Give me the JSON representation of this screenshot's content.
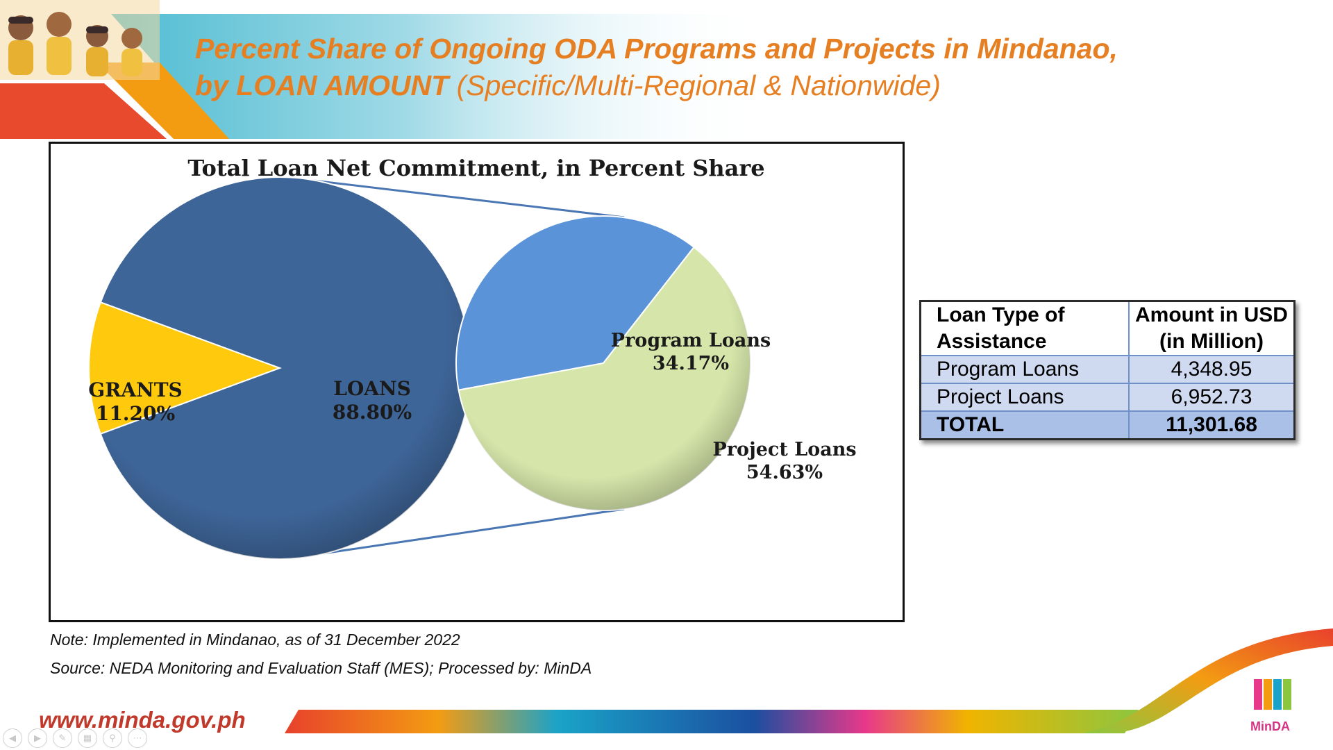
{
  "title": {
    "line1": "Percent Share of Ongoing ODA Programs and Projects in Mindanao,",
    "line2_bold": "by LOAN AMOUNT",
    "line2_rest": " (Specific/Multi-Regional & Nationwide)"
  },
  "chart_data": {
    "type": "pie",
    "variant": "pie-of-pie",
    "title": "Total Loan Net Commitment, in Percent Share",
    "main": {
      "slices": [
        {
          "label": "GRANTS",
          "value": 11.2,
          "display": "11.20%",
          "color": "#ffc90e"
        },
        {
          "label": "LOANS",
          "value": 88.8,
          "display": "88.80%",
          "color": "#3e6598"
        }
      ]
    },
    "breakdown": {
      "of": "LOANS",
      "slices": [
        {
          "label": "Program Loans",
          "value": 34.17,
          "display": "34.17%",
          "color": "#5b93d9"
        },
        {
          "label": "Project Loans",
          "value": 54.63,
          "display": "54.63%",
          "color": "#d6e6aa"
        }
      ]
    }
  },
  "table": {
    "headers": [
      "Loan Type of Assistance",
      "Amount in USD (in Million)"
    ],
    "header_lines": {
      "type": [
        "Loan Type of",
        "Assistance"
      ],
      "amount": [
        "Amount in USD",
        "(in Million)"
      ]
    },
    "rows": [
      {
        "type": "Program Loans",
        "amount": "4,348.95"
      },
      {
        "type": "Project Loans",
        "amount": "6,952.73"
      },
      {
        "type": "TOTAL",
        "amount": "11,301.68"
      }
    ]
  },
  "notes": {
    "note": "Note: Implemented in Mindanao, as of 31 December 2022",
    "source": "Source: NEDA Monitoring and Evaluation Staff (MES);  Processed by: MinDA"
  },
  "footer": {
    "website": "www.minda.gov.ph",
    "logo_text": "MinDA"
  },
  "colors": {
    "title": "#e67e22",
    "website": "#c0392b",
    "table_header_border": "#6f90c9"
  }
}
